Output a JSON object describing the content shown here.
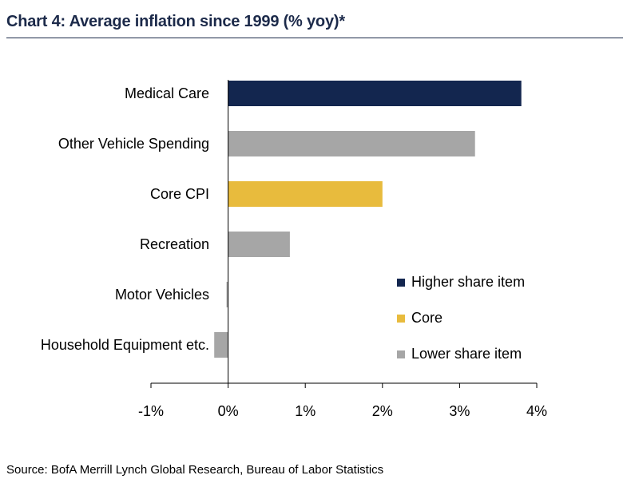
{
  "title": "Chart 4: Average inflation since 1999 (% yoy)*",
  "source": "Source: BofA Merrill Lynch Global Research, Bureau of Labor Statistics",
  "colors": {
    "higher": "#13264f",
    "core": "#e8bb3d",
    "lower": "#a6a6a6",
    "axis": "#000000"
  },
  "chart_data": {
    "type": "bar",
    "orientation": "horizontal",
    "categories": [
      "Medical Care",
      "Other Vehicle Spending",
      "Core CPI",
      "Recreation",
      "Motor Vehicles",
      "Household Equipment etc."
    ],
    "values": [
      3.8,
      3.2,
      2.0,
      0.8,
      -0.02,
      -0.18
    ],
    "groups": [
      "higher",
      "lower",
      "core",
      "lower",
      "lower",
      "lower"
    ],
    "xlim": [
      -1,
      4
    ],
    "xticks": [
      -1,
      0,
      1,
      2,
      3,
      4
    ],
    "xtick_labels": [
      "-1%",
      "0%",
      "1%",
      "2%",
      "3%",
      "4%"
    ],
    "legend": [
      {
        "key": "higher",
        "label": "Higher share item"
      },
      {
        "key": "core",
        "label": "Core"
      },
      {
        "key": "lower",
        "label": "Lower share item"
      }
    ],
    "legend_position": "bottom-right",
    "grid": false
  }
}
